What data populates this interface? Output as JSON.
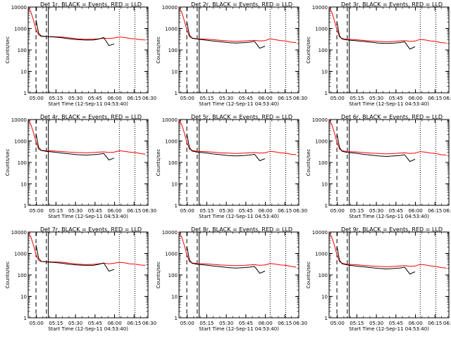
{
  "chart_data": {
    "type": "line",
    "x_ticks": [
      "05:00",
      "05:15",
      "05:30",
      "05:45",
      "06:00",
      "06:15",
      "06:30"
    ],
    "y_ticks": [
      "1",
      "10",
      "100",
      "1000",
      "10000"
    ],
    "y_scale": "log",
    "ylim": [
      1,
      10000
    ],
    "ylabel": "Counts/sec",
    "xlabel": "Start Time (12-Sep-11 04:53:40)",
    "colors": {
      "events": "#000000",
      "lld": "#ff0000"
    },
    "panels": [
      {
        "title": "Det 1r, BLACK = Events, RED = LLD",
        "x_minutes": [
          0,
          2,
          4,
          6,
          8,
          10,
          14,
          20,
          26,
          32,
          38,
          44,
          50,
          54,
          58,
          62,
          66,
          70,
          74,
          78,
          82,
          86,
          90
        ],
        "events": [
          null,
          null,
          null,
          2500,
          600,
          450,
          420,
          400,
          370,
          330,
          300,
          290,
          290,
          320,
          380,
          160,
          190,
          null,
          null,
          null,
          null,
          null,
          null
        ],
        "lld": [
          9000,
          6000,
          2500,
          900,
          500,
          430,
          420,
          410,
          400,
          360,
          330,
          310,
          320,
          330,
          350,
          340,
          360,
          400,
          380,
          340,
          330,
          300,
          290
        ]
      },
      {
        "title": "Det 2r, BLACK = Events, RED = LLD",
        "x_minutes": [
          0,
          2,
          4,
          6,
          8,
          10,
          14,
          20,
          26,
          32,
          38,
          44,
          50,
          54,
          58,
          62,
          66,
          70,
          74,
          78,
          82,
          86,
          90
        ],
        "events": [
          null,
          null,
          null,
          2000,
          500,
          350,
          320,
          290,
          260,
          240,
          220,
          210,
          220,
          230,
          250,
          120,
          150,
          null,
          null,
          null,
          null,
          null,
          null
        ],
        "lld": [
          9000,
          6000,
          2400,
          900,
          420,
          360,
          330,
          320,
          300,
          280,
          260,
          250,
          260,
          270,
          280,
          260,
          270,
          330,
          300,
          270,
          260,
          230,
          220
        ]
      },
      {
        "title": "Det 3r, BLACK = Events, RED = LLD",
        "x_minutes": [
          0,
          2,
          4,
          6,
          8,
          10,
          14,
          20,
          26,
          32,
          38,
          44,
          50,
          54,
          58,
          62,
          66,
          70,
          74,
          78,
          82,
          86,
          90
        ],
        "events": [
          null,
          null,
          null,
          2000,
          450,
          320,
          290,
          270,
          250,
          230,
          210,
          200,
          210,
          220,
          240,
          110,
          140,
          null,
          null,
          null,
          null,
          null,
          null
        ],
        "lld": [
          9000,
          6000,
          2400,
          900,
          400,
          340,
          310,
          300,
          280,
          260,
          250,
          240,
          250,
          260,
          270,
          250,
          260,
          310,
          290,
          260,
          250,
          220,
          210
        ]
      },
      {
        "title": "Det 4r, BLACK = Events, RED = LLD",
        "x_minutes": [
          0,
          2,
          4,
          6,
          8,
          10,
          14,
          20,
          26,
          32,
          38,
          44,
          50,
          54,
          58,
          62,
          66,
          70,
          74,
          78,
          82,
          86,
          90
        ],
        "events": [
          null,
          null,
          null,
          2200,
          500,
          360,
          330,
          300,
          270,
          250,
          230,
          220,
          230,
          240,
          260,
          130,
          160,
          null,
          null,
          null,
          null,
          null,
          null
        ],
        "lld": [
          9000,
          6000,
          2500,
          900,
          420,
          370,
          350,
          340,
          320,
          300,
          290,
          280,
          290,
          300,
          310,
          290,
          300,
          350,
          330,
          300,
          290,
          260,
          240
        ]
      },
      {
        "title": "Det 5r, BLACK = Events, RED = LLD",
        "x_minutes": [
          0,
          2,
          4,
          6,
          8,
          10,
          14,
          20,
          26,
          32,
          38,
          44,
          50,
          54,
          58,
          62,
          66,
          70,
          74,
          78,
          82,
          86,
          90
        ],
        "events": [
          null,
          null,
          null,
          2200,
          500,
          340,
          300,
          280,
          250,
          230,
          210,
          200,
          210,
          220,
          240,
          120,
          150,
          null,
          null,
          null,
          null,
          null,
          null
        ],
        "lld": [
          9000,
          6000,
          2500,
          900,
          420,
          360,
          330,
          320,
          300,
          280,
          270,
          260,
          270,
          280,
          290,
          270,
          280,
          330,
          310,
          280,
          270,
          240,
          230
        ]
      },
      {
        "title": "Det 6r, BLACK = Events, RED = LLD",
        "x_minutes": [
          0,
          2,
          4,
          6,
          8,
          10,
          14,
          20,
          26,
          32,
          38,
          44,
          50,
          54,
          58,
          62,
          66,
          70,
          74,
          78,
          82,
          86,
          90
        ],
        "events": [
          null,
          null,
          null,
          2200,
          500,
          330,
          290,
          270,
          240,
          220,
          200,
          190,
          200,
          210,
          230,
          110,
          140,
          null,
          null,
          null,
          null,
          null,
          null
        ],
        "lld": [
          9000,
          6000,
          2500,
          900,
          420,
          350,
          320,
          310,
          290,
          270,
          260,
          250,
          260,
          270,
          280,
          260,
          270,
          320,
          300,
          270,
          260,
          230,
          220
        ]
      },
      {
        "title": "Det 7r, BLACK = Events, RED = LLD",
        "x_minutes": [
          0,
          2,
          4,
          6,
          8,
          10,
          14,
          20,
          26,
          32,
          38,
          44,
          50,
          54,
          58,
          62,
          66,
          70,
          74,
          78,
          82,
          86,
          90
        ],
        "events": [
          null,
          null,
          null,
          2500,
          600,
          430,
          400,
          380,
          350,
          310,
          290,
          280,
          280,
          310,
          360,
          150,
          180,
          null,
          null,
          null,
          null,
          null,
          null
        ],
        "lld": [
          9000,
          6000,
          2500,
          900,
          480,
          420,
          410,
          400,
          390,
          350,
          320,
          300,
          310,
          330,
          350,
          330,
          350,
          390,
          370,
          330,
          320,
          290,
          280
        ]
      },
      {
        "title": "Det 8r, BLACK = Events, RED = LLD",
        "x_minutes": [
          0,
          2,
          4,
          6,
          8,
          10,
          14,
          20,
          26,
          32,
          38,
          44,
          50,
          54,
          58,
          62,
          66,
          70,
          74,
          78,
          82,
          86,
          90
        ],
        "events": [
          null,
          null,
          null,
          2200,
          500,
          350,
          310,
          290,
          260,
          240,
          220,
          210,
          220,
          230,
          250,
          120,
          150,
          null,
          null,
          null,
          null,
          null,
          null
        ],
        "lld": [
          9000,
          6000,
          2500,
          900,
          420,
          360,
          340,
          330,
          310,
          290,
          280,
          270,
          280,
          290,
          300,
          280,
          290,
          340,
          320,
          290,
          280,
          250,
          230
        ]
      },
      {
        "title": "Det 9r, BLACK = Events, RED = LLD",
        "x_minutes": [
          0,
          2,
          4,
          6,
          8,
          10,
          14,
          20,
          26,
          32,
          38,
          44,
          50,
          54,
          58,
          62,
          66,
          70,
          74,
          78,
          82,
          86,
          90
        ],
        "events": [
          null,
          null,
          null,
          2200,
          480,
          330,
          290,
          260,
          240,
          220,
          200,
          190,
          200,
          210,
          230,
          110,
          140,
          null,
          null,
          null,
          null,
          null,
          null
        ],
        "lld": [
          9000,
          6000,
          2500,
          900,
          420,
          350,
          310,
          300,
          280,
          260,
          250,
          240,
          250,
          260,
          270,
          250,
          260,
          310,
          290,
          260,
          250,
          220,
          210
        ]
      }
    ],
    "xlim_minutes": [
      0,
      92
    ],
    "x_tick_minutes": [
      6.33,
      21.33,
      36.33,
      51.33,
      66.33,
      81.33,
      96.33
    ],
    "markers": {
      "dashed_minutes": [
        6,
        14
      ],
      "solid_minutes": [
        15.5
      ],
      "dotted_minutes": [
        70,
        82
      ]
    }
  }
}
